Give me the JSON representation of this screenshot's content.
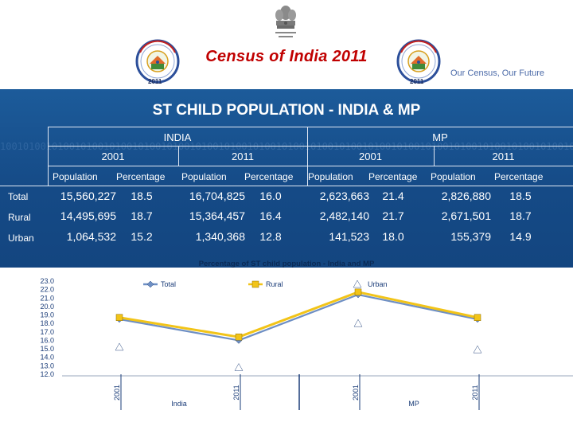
{
  "header": {
    "census_title": "Census of India  2011",
    "tagline": "Our Census,  Our Future",
    "logo_year_left": "2011",
    "logo_year_right": "2011"
  },
  "slide_title": "ST CHILD POPULATION - INDIA & MP",
  "table": {
    "groups": [
      "INDIA",
      "MP"
    ],
    "years": [
      "2001",
      "2011",
      "2001",
      "2011"
    ],
    "column_headers": [
      "Population",
      "Percentage",
      "Population",
      "Percentage",
      "Population",
      "Percentage",
      "Population",
      "Percentage"
    ],
    "rows": [
      {
        "label": "Total",
        "cells": [
          "15,560,227",
          "18.5",
          "16,704,825",
          "16.0",
          "2,623,663",
          "21.4",
          "2,826,880",
          "18.5"
        ]
      },
      {
        "label": "Rural",
        "cells": [
          "14,495,695",
          "18.7",
          "15,364,457",
          "16.4",
          "2,482,140",
          "21.7",
          "2,671,501",
          "18.7"
        ]
      },
      {
        "label": "Urban",
        "cells": [
          "1,064,532",
          "15.2",
          "1,340,368",
          "12.8",
          "141,523",
          "18.0",
          "155,379",
          "14.9"
        ]
      }
    ]
  },
  "colors": {
    "panel": "#154a86",
    "title_red": "#c00000",
    "total_line": "#6e8fc4",
    "rural_line": "#f2c418",
    "urban_line": "#ffffff"
  },
  "chart_data": {
    "type": "line",
    "title": "Percentage of ST child population - India and MP",
    "categories": [
      "2001",
      "2011",
      "2001",
      "2011"
    ],
    "category_groups": [
      {
        "label": "India",
        "categories": [
          "2001",
          "2011"
        ]
      },
      {
        "label": "MP",
        "categories": [
          "2001",
          "2011"
        ]
      }
    ],
    "series": [
      {
        "name": "Total",
        "values": [
          18.5,
          16.0,
          21.4,
          18.5
        ]
      },
      {
        "name": "Rural",
        "values": [
          18.7,
          16.4,
          21.7,
          18.7
        ]
      },
      {
        "name": "Urban",
        "values": [
          15.2,
          12.8,
          18.0,
          14.9
        ]
      }
    ],
    "ylim": [
      12.0,
      23.0
    ],
    "yticks": [
      "23.0",
      "22.0",
      "21.0",
      "20.0",
      "19.0",
      "18.0",
      "17.0",
      "16.0",
      "15.0",
      "14.0",
      "13.0",
      "12.0"
    ],
    "legend_position": "top"
  }
}
